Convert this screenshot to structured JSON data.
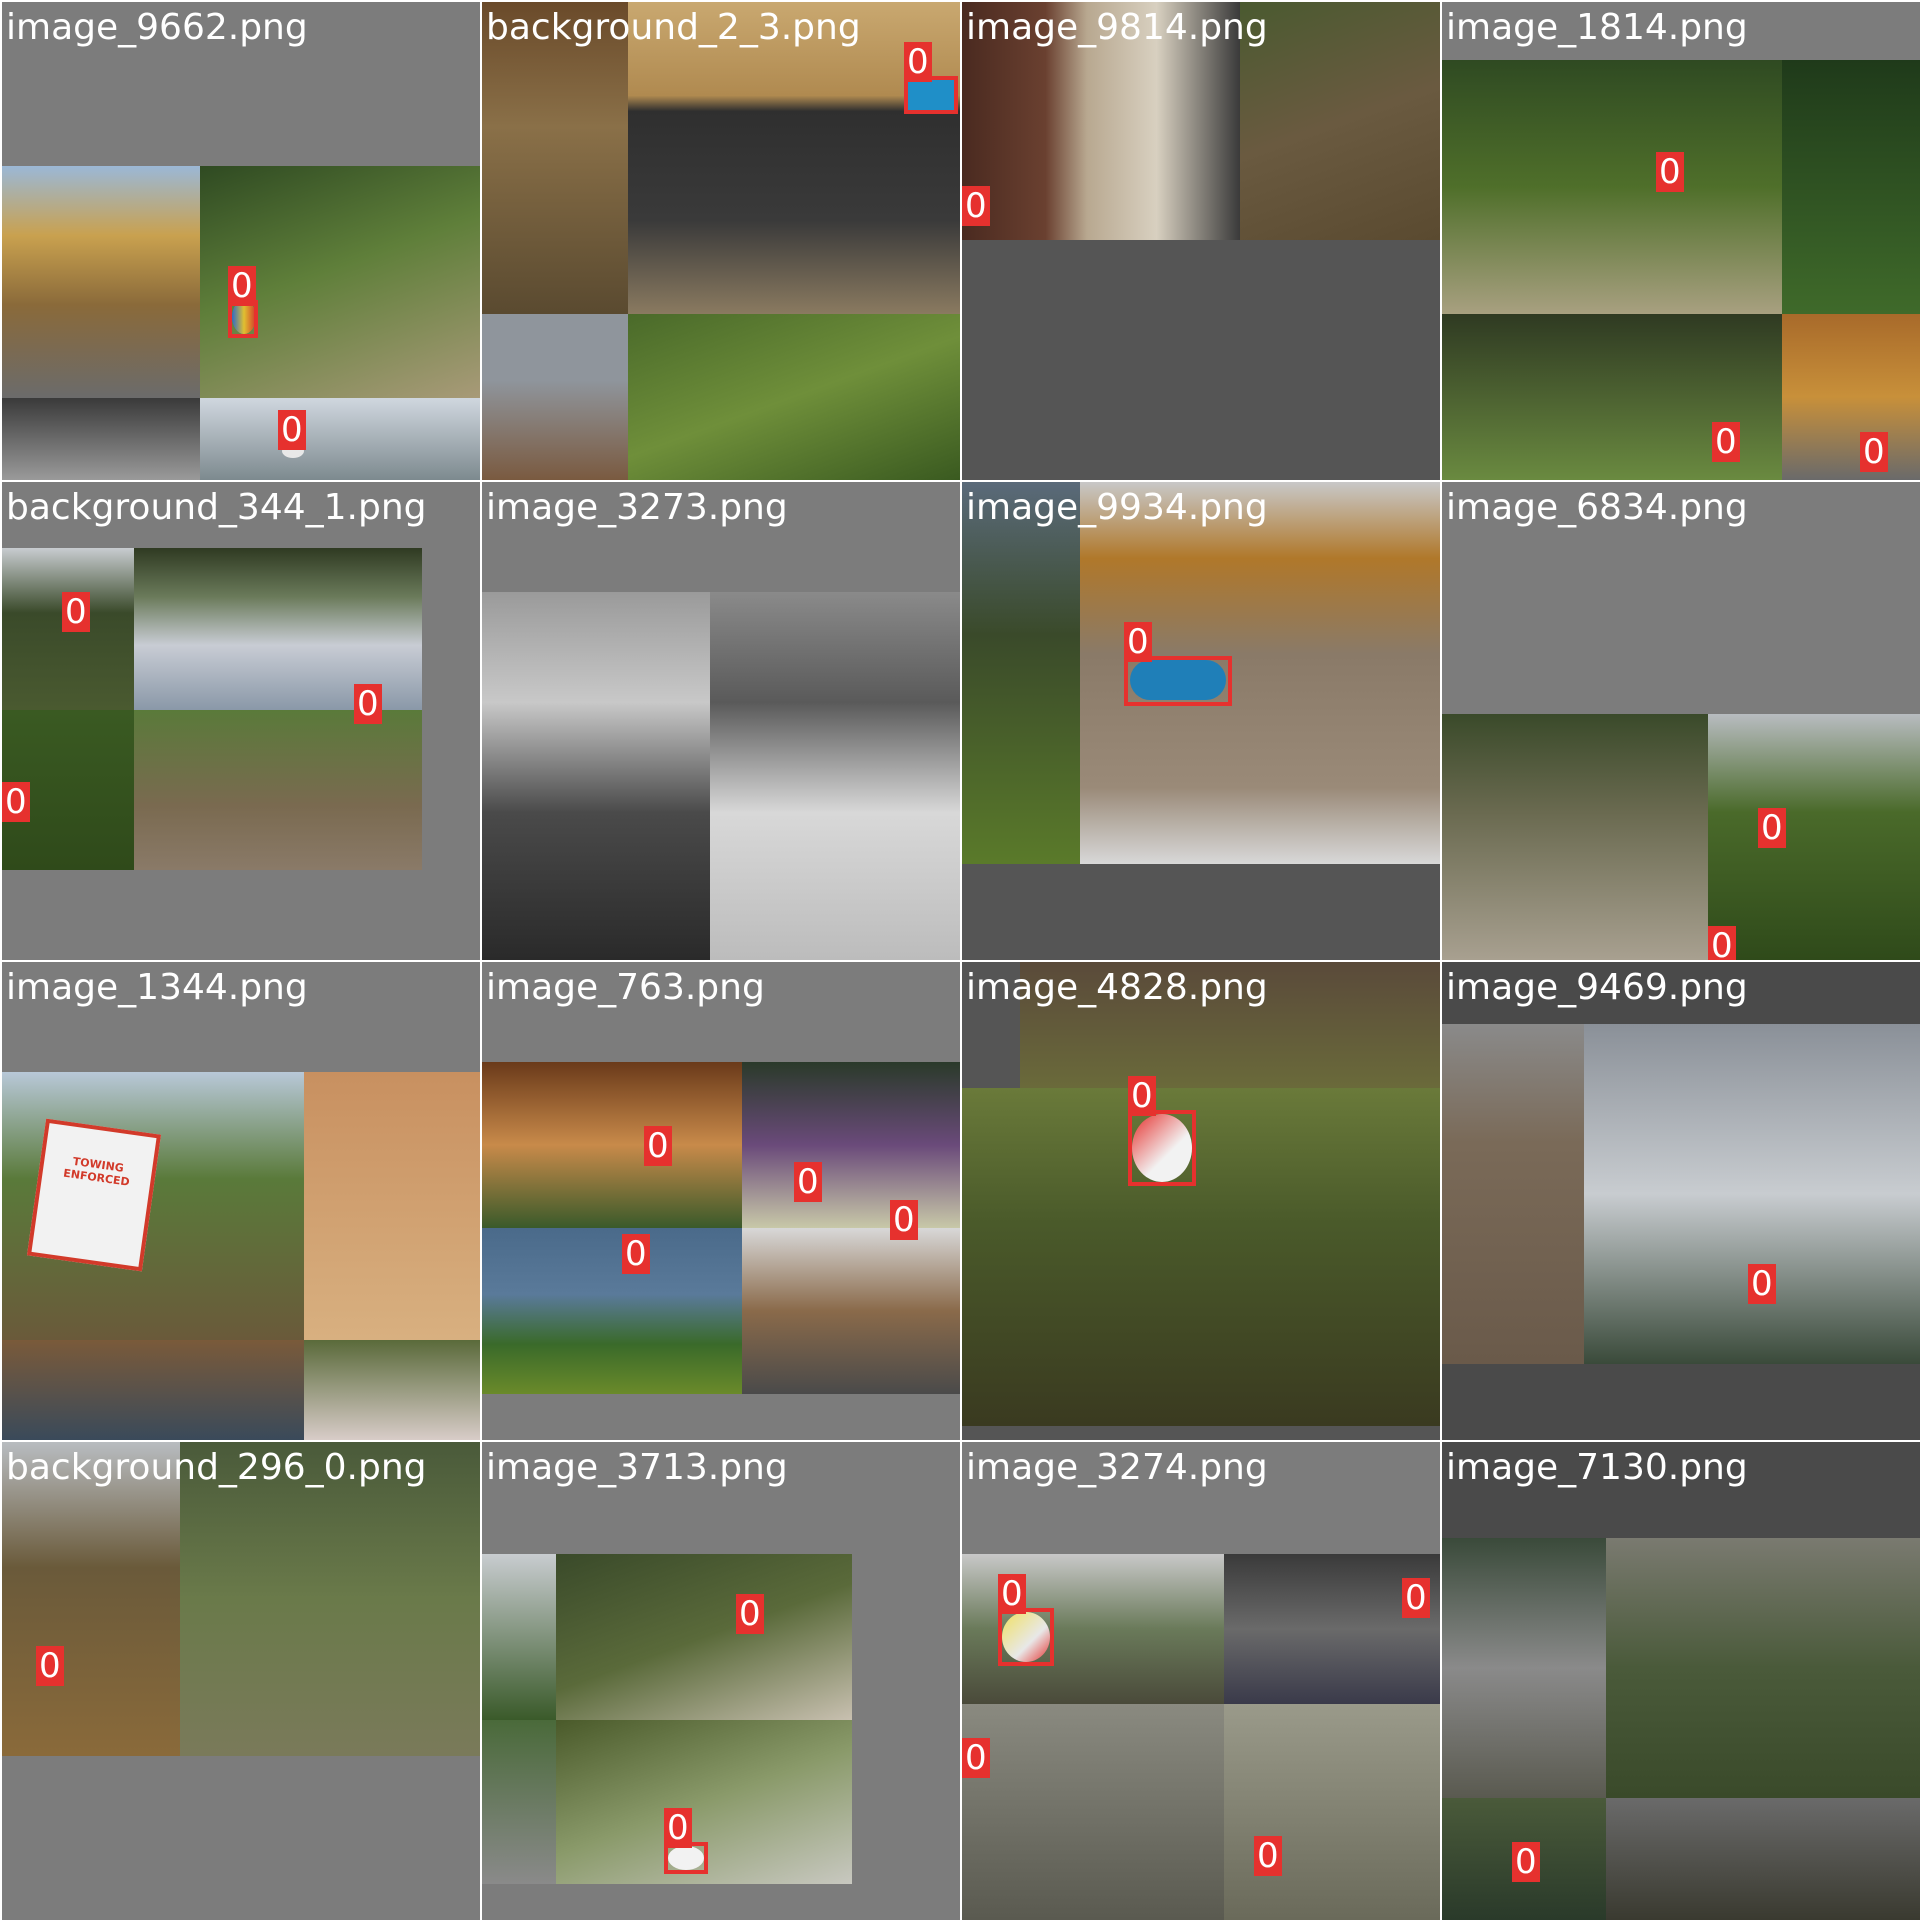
{
  "colors": {
    "bbox": "#e6312e",
    "label_text": "#ffffff",
    "pad_gray": "#7a7a7a",
    "pad_dark": "#555555"
  },
  "tiles": [
    {
      "filename": "image_9662.png",
      "labels": [
        "0",
        "0"
      ]
    },
    {
      "filename": "background_2_3.png",
      "labels": [
        "0"
      ]
    },
    {
      "filename": "image_9814.png",
      "labels": [
        "0"
      ]
    },
    {
      "filename": "image_1814.png",
      "labels": [
        "0",
        "0",
        "0"
      ]
    },
    {
      "filename": "background_344_1.png",
      "labels": [
        "0",
        "0",
        "0"
      ]
    },
    {
      "filename": "image_3273.png",
      "labels": []
    },
    {
      "filename": "image_9934.png",
      "labels": [
        "0"
      ]
    },
    {
      "filename": "image_6834.png",
      "labels": [
        "0",
        "0"
      ]
    },
    {
      "filename": "image_1344.png",
      "labels": []
    },
    {
      "filename": "image_763.png",
      "labels": [
        "0",
        "0",
        "0",
        "0"
      ]
    },
    {
      "filename": "image_4828.png",
      "labels": [
        "0"
      ]
    },
    {
      "filename": "image_9469.png",
      "labels": [
        "0"
      ]
    },
    {
      "filename": "background_296_0.png",
      "labels": [
        "0"
      ]
    },
    {
      "filename": "image_3713.png",
      "labels": [
        "0",
        "0"
      ]
    },
    {
      "filename": "image_3274.png",
      "labels": [
        "0",
        "0",
        "0",
        "0"
      ]
    },
    {
      "filename": "image_7130.png",
      "labels": [
        "0"
      ]
    }
  ],
  "sign_text": {
    "towing": "TOWING ENFORCED"
  }
}
